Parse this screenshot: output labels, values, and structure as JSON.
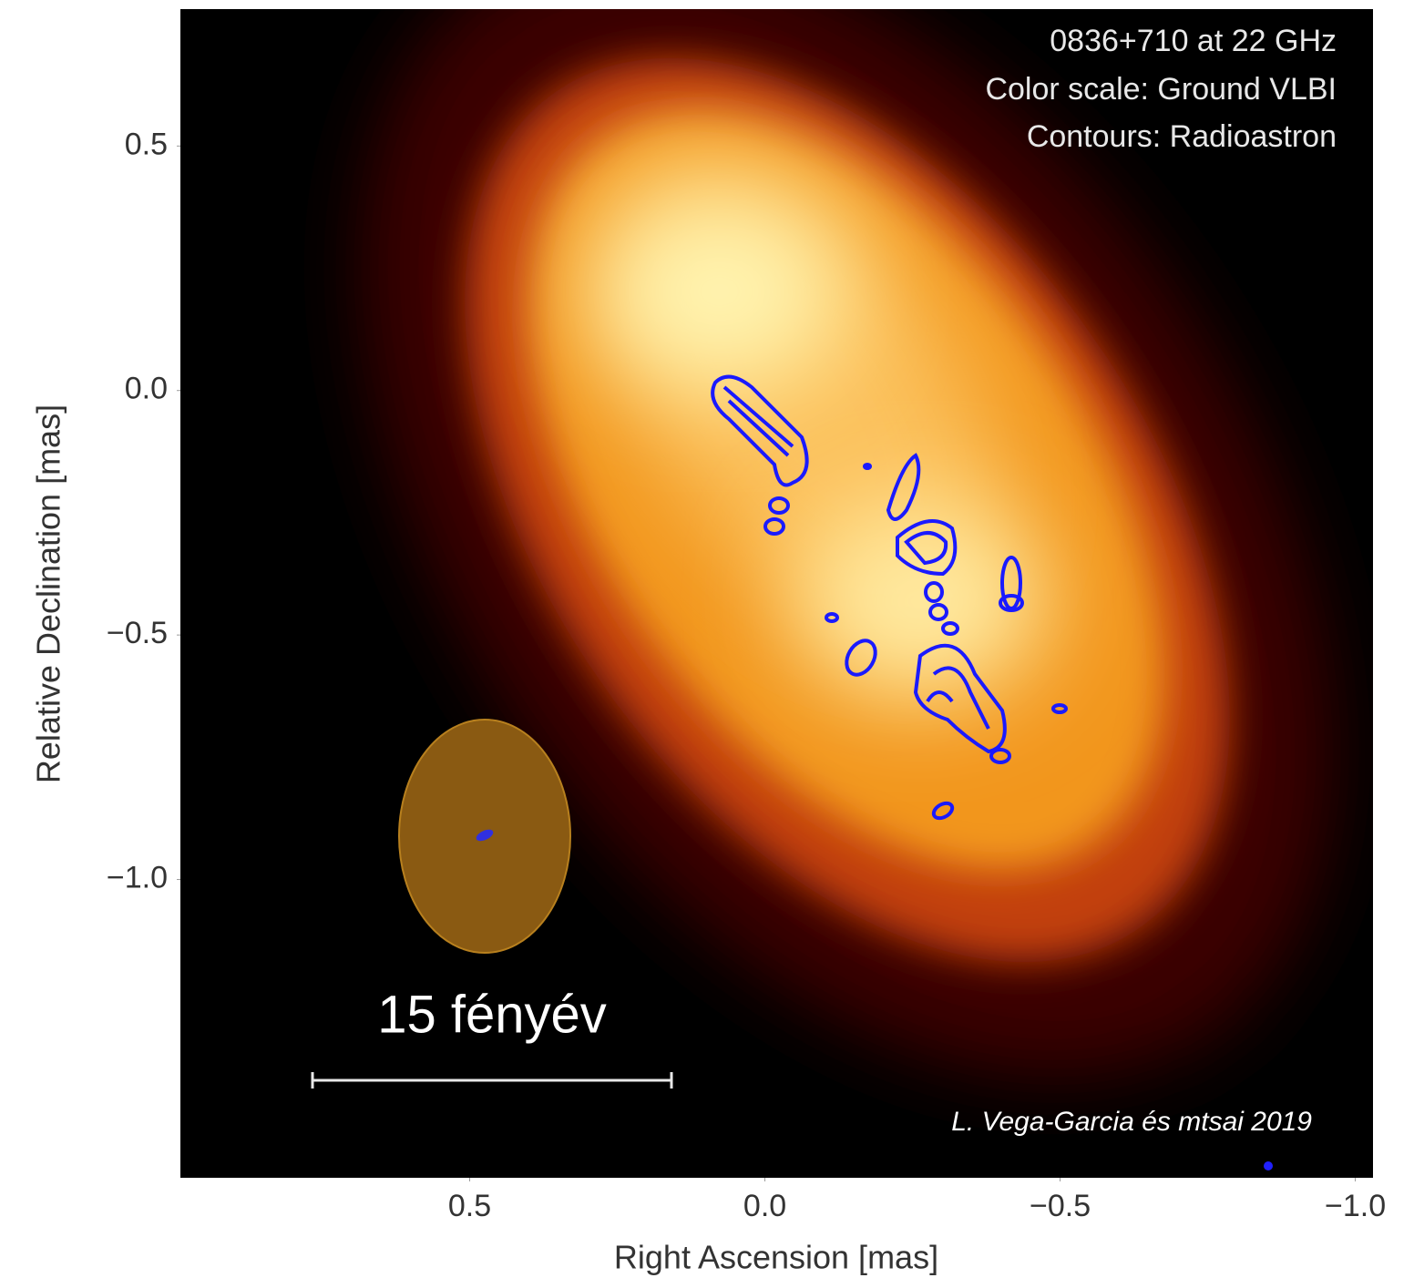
{
  "chart_data": {
    "type": "image",
    "annotations": [
      "0836+710 at 22 GHz",
      "Color scale: Ground VLBI",
      "Contours: Radioastron"
    ],
    "scale_label": "15 fényév",
    "credit": "L. Vega-Garcia és mtsai 2019",
    "xlabel": "Right Ascension [mas]",
    "ylabel": "Relative Declination [mas]",
    "xlim": [
      0.99,
      -1.03
    ],
    "ylim": [
      -1.61,
      0.78
    ],
    "xticks": [
      0.5,
      {
        "value": 0,
        "label": "0.0"
      },
      {
        "value": -0.5,
        "label": "−0.5"
      },
      {
        "value": -1,
        "label": "−1.0"
      }
    ],
    "yticks": [
      0.5,
      {
        "value": 0,
        "label": "0.0"
      },
      {
        "value": -0.5,
        "label": "−0.5"
      },
      {
        "value": -1,
        "label": "−1.0"
      }
    ]
  }
}
